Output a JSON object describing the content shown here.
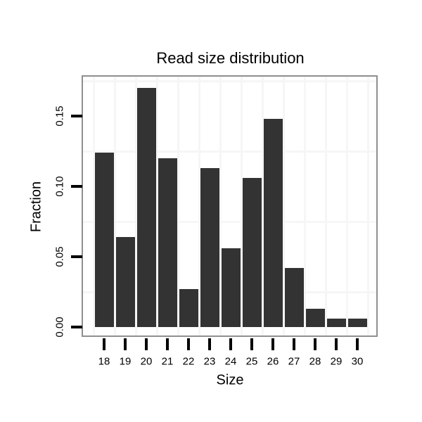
{
  "chart_data": {
    "type": "bar",
    "title": "Read size distribution",
    "xlabel": "Size",
    "ylabel": "Fraction",
    "categories": [
      "18",
      "19",
      "20",
      "21",
      "22",
      "23",
      "24",
      "25",
      "26",
      "27",
      "28",
      "29",
      "30"
    ],
    "values": [
      0.124,
      0.064,
      0.17,
      0.12,
      0.027,
      0.113,
      0.056,
      0.106,
      0.148,
      0.042,
      0.013,
      0.006,
      0.006
    ],
    "y_ticks": [
      {
        "value": 0.0,
        "label": "0.00"
      },
      {
        "value": 0.05,
        "label": "0.05"
      },
      {
        "value": 0.1,
        "label": "0.10"
      },
      {
        "value": 0.15,
        "label": "0.15"
      }
    ],
    "y_minor_gridlines": [
      0.025,
      0.075,
      0.125,
      0.175
    ],
    "ylim": [
      -0.006,
      0.178
    ],
    "grid": "minor-only",
    "legend": "none",
    "colors": {
      "bar": "#333333",
      "panel_border": "#8f8f8f",
      "gridline": "#f6f6f6",
      "tick": "#000000",
      "text": "#000000",
      "background": "#ffffff"
    }
  }
}
